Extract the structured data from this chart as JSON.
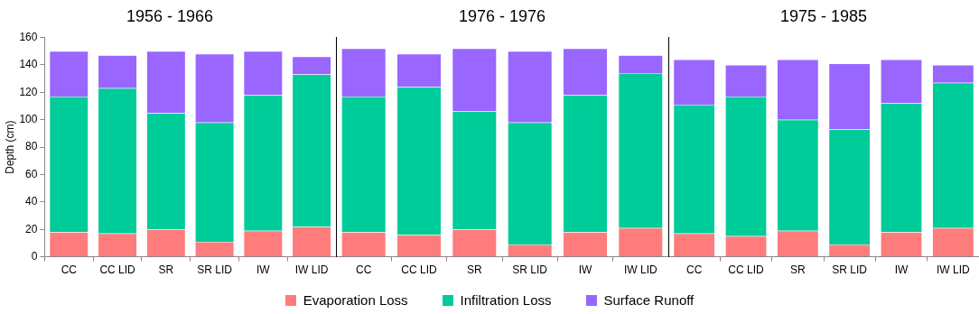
{
  "chart_data": [
    {
      "type": "bar",
      "title": "1956 - 1966",
      "ylabel": "Depth (cm)",
      "categories": [
        "CC",
        "CC LID",
        "SR",
        "SR LID",
        "IW",
        "IW LID"
      ],
      "stacked": true,
      "ylim": [
        0,
        160
      ],
      "yticks": [
        0,
        20,
        40,
        60,
        80,
        100,
        120,
        140,
        160
      ],
      "grid": false,
      "legend": "bottom",
      "series": [
        {
          "name": "Evaporation Loss",
          "color": "#ff7c7c",
          "values": [
            18,
            17,
            20,
            11,
            19,
            22
          ]
        },
        {
          "name": "Infiltration Loss",
          "color": "#00cc99",
          "values": [
            99,
            106,
            85,
            87,
            99,
            111
          ]
        },
        {
          "name": "Surface Runoff",
          "color": "#9966ff",
          "values": [
            33,
            24,
            45,
            50,
            32,
            13
          ]
        }
      ]
    },
    {
      "type": "bar",
      "title": "1976 - 1976",
      "categories": [
        "CC",
        "CC LID",
        "SR",
        "SR LID",
        "IW",
        "IW LID"
      ],
      "stacked": true,
      "ylim": [
        0,
        160
      ],
      "yticks": [
        0,
        20,
        40,
        60,
        80,
        100,
        120,
        140,
        160
      ],
      "tick_labels": "x",
      "grid": false,
      "series": [
        {
          "color": "#ff7c7c",
          "values": [
            18,
            16,
            20,
            9,
            18,
            21
          ]
        },
        {
          "color": "#00cc99",
          "values": [
            99,
            108,
            86,
            89,
            100,
            113
          ]
        },
        {
          "color": "#9966ff",
          "values": [
            35,
            24,
            46,
            52,
            34,
            13
          ]
        }
      ]
    },
    {
      "type": "bar",
      "title": "1975 - 1985",
      "categories": [
        "CC",
        "CC LID",
        "SR",
        "SR LID",
        "IW",
        "IW LID"
      ],
      "stacked": true,
      "ylim": [
        0,
        160
      ],
      "yticks": [
        0,
        20,
        40,
        60,
        80,
        100,
        120,
        140,
        160
      ],
      "tick_labels": "x",
      "grid": false,
      "series": [
        {
          "color": "#ff7c7c",
          "values": [
            17,
            15,
            19,
            9,
            18,
            21
          ]
        },
        {
          "color": "#00cc99",
          "values": [
            94,
            102,
            81,
            84,
            94,
            106
          ]
        },
        {
          "color": "#9966ff",
          "values": [
            33,
            23,
            44,
            48,
            32,
            13
          ]
        }
      ]
    }
  ]
}
